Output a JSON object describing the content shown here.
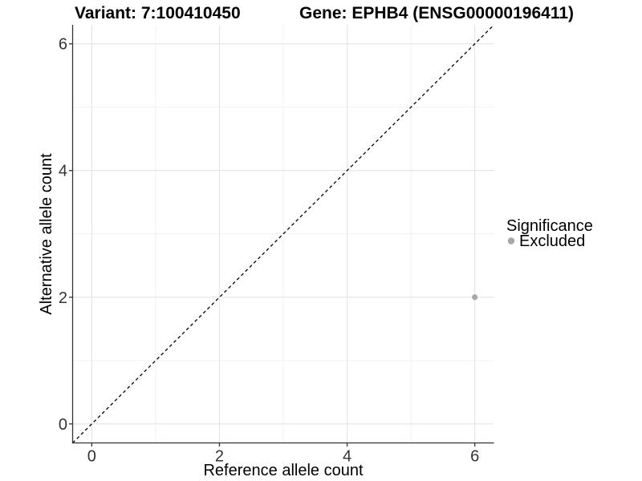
{
  "header": {
    "variant_title": "Variant: 7:100410450",
    "gene_title": "Gene: EPHB4 (ENSG00000196411)"
  },
  "chart_data": {
    "type": "scatter",
    "xlabel": "Reference allele count",
    "ylabel": "Alternative allele count",
    "xlim": [
      -0.3,
      6.3
    ],
    "ylim": [
      -0.3,
      6.3
    ],
    "xticks": [
      0,
      2,
      4,
      6
    ],
    "yticks": [
      0,
      2,
      4,
      6
    ],
    "xticks_minor": [
      1,
      3,
      5
    ],
    "yticks_minor": [
      1,
      3,
      5
    ],
    "grid": "major and minor, light gray on white panel",
    "reference_line": {
      "type": "identity y=x",
      "style": "dashed",
      "color": "#000000"
    },
    "series": [
      {
        "name": "Excluded",
        "color": "#a8a8a8",
        "points": [
          {
            "x": 6,
            "y": 2
          }
        ]
      }
    ],
    "legend": {
      "title": "Significance",
      "position": "right",
      "items": [
        {
          "label": "Excluded",
          "color": "#a8a8a8"
        }
      ]
    }
  },
  "style": {
    "background": "#ffffff",
    "grid_major_color": "#e4e4e4",
    "grid_minor_color": "#efefef",
    "axis_line_color": "#333333",
    "tick_mark_color": "#333333"
  }
}
